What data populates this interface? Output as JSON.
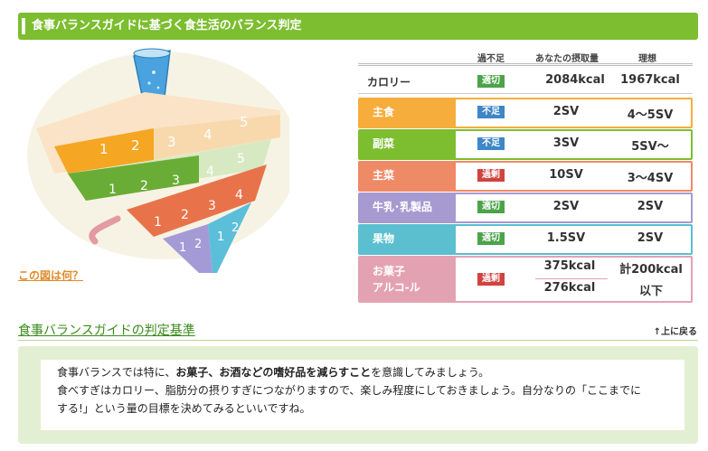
{
  "header": {
    "title": "食事バランスガイドに基づく食生活のバランス判定"
  },
  "pyramid": {
    "what_link": "この図は何？",
    "tiers": {
      "main_nums": [
        "1",
        "2",
        "3",
        "4",
        "5"
      ],
      "side_nums": [
        "1",
        "2",
        "3",
        "4",
        "5"
      ],
      "mainv_nums": [
        "1",
        "2",
        "3",
        "4"
      ],
      "dairy_nums": [
        "1",
        "2"
      ],
      "fruit_nums": [
        "1",
        "2"
      ]
    },
    "colors": {
      "main": "#f5a623",
      "side": "#6aad36",
      "mainv": "#e8734a",
      "dairy": "#a49bd6",
      "fruit": "#5bbfd9"
    }
  },
  "table": {
    "columns": {
      "status": "過不足",
      "intake": "あなたの摂取量",
      "ideal": "理想"
    },
    "calorie": {
      "name": "カロリー",
      "status": "適切",
      "intake": "2084kcal",
      "ideal": "1967kcal"
    },
    "rows": [
      {
        "name": "主食",
        "status": "不足",
        "intake": "2SV",
        "ideal": "4～5SV",
        "color": "#f6ad3c"
      },
      {
        "name": "副菜",
        "status": "不足",
        "intake": "3SV",
        "ideal": "5SV～",
        "color": "#7cbe2f"
      },
      {
        "name": "主菜",
        "status": "過剰",
        "intake": "10SV",
        "ideal": "3～4SV",
        "color": "#ef8a66"
      },
      {
        "name": "牛乳･乳製品",
        "status": "適切",
        "intake": "2SV",
        "ideal": "2SV",
        "color": "#a69ad0"
      },
      {
        "name": "果物",
        "status": "適切",
        "intake": "1.5SV",
        "ideal": "2SV",
        "color": "#5bbfcf"
      }
    ],
    "snack": {
      "name1": "お菓子",
      "name2": "アルコ-ル",
      "status": "過剰",
      "intake1": "375kcal",
      "intake2": "276kcal",
      "ideal1": "計200kcal",
      "ideal2": "以下",
      "color": "#e3a2b2"
    }
  },
  "criteria": {
    "link": "食事バランスガイドの判定基準",
    "back_top": "上に戻る"
  },
  "advice": {
    "line1_a": "食事バランスでは特に、",
    "line1_b": "お菓子、お酒などの嗜好品を減らすこと",
    "line1_c": "を意識してみましょう。",
    "line2": "食べすぎはカロリー、脂肪分の摂りすぎにつながりますので、楽しみ程度にしておきましょう。自分なりの「ここまでに",
    "line3": "する!」という量の目標を決めてみるといいですね。"
  }
}
